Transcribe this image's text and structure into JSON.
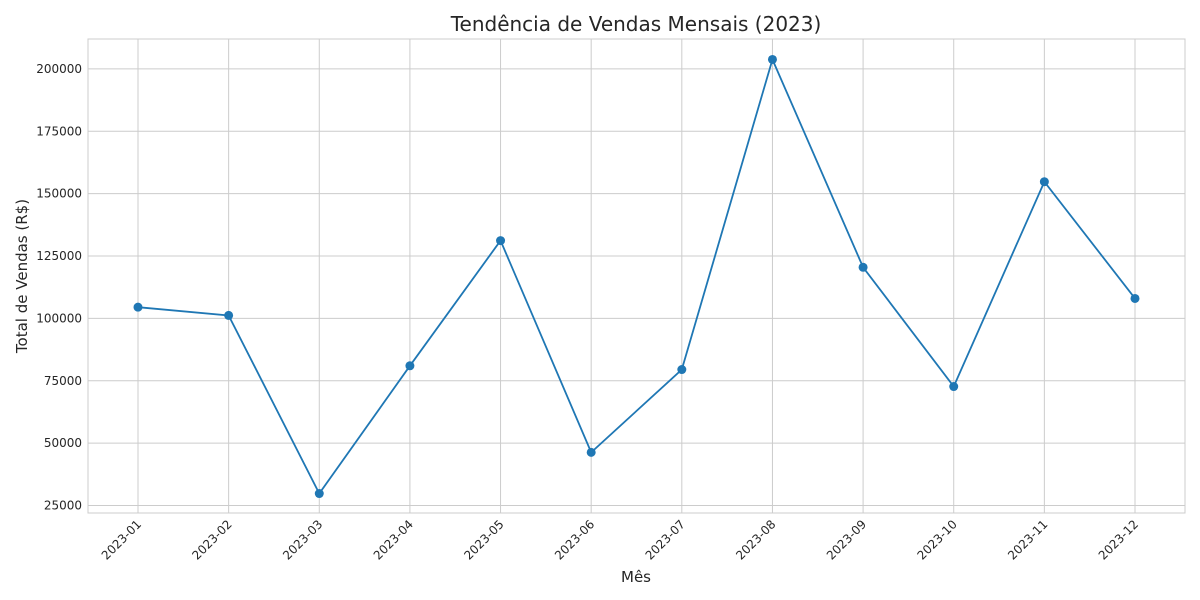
{
  "chart_data": {
    "type": "line",
    "title": "Tendência de Vendas Mensais (2023)",
    "xlabel": "Mês",
    "ylabel": "Total de Vendas (R$)",
    "categories": [
      "2023-01",
      "2023-02",
      "2023-03",
      "2023-04",
      "2023-05",
      "2023-06",
      "2023-07",
      "2023-08",
      "2023-09",
      "2023-10",
      "2023-11",
      "2023-12"
    ],
    "series": [
      {
        "values": [
          104500,
          101200,
          29800,
          81000,
          131200,
          46300,
          79500,
          203800,
          120500,
          72700,
          154800,
          108000
        ],
        "color": "#1f77b4",
        "marker": "circle"
      }
    ],
    "yticks": [
      25000,
      50000,
      75000,
      100000,
      125000,
      150000,
      175000,
      200000
    ],
    "ytick_labels": [
      "25000",
      "50000",
      "75000",
      "100000",
      "125000",
      "150000",
      "175000",
      "200000"
    ],
    "ylim": [
      22000,
      212000
    ],
    "grid": true,
    "xtick_rotation": "45 degrees"
  }
}
